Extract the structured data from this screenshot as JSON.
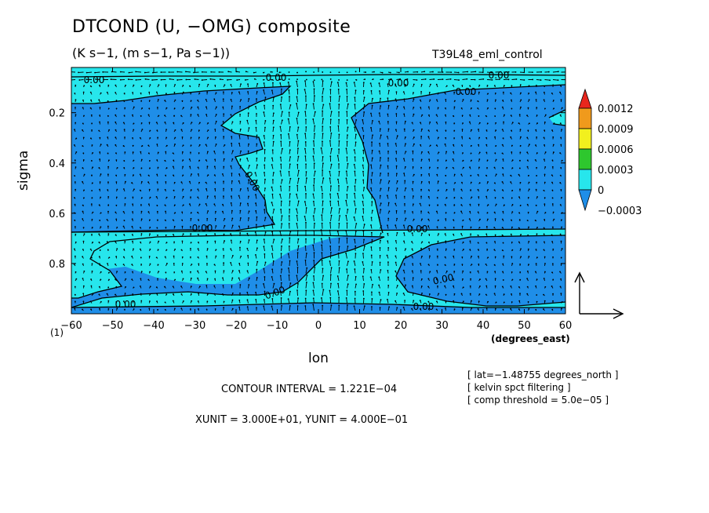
{
  "header": {
    "title": "DTCOND (U, −OMG) composite",
    "subtitle": "(K s−1, (m s−1, Pa s−1))",
    "run": "T39L48_eml_control"
  },
  "footer": {
    "contour_interval": "CONTOUR INTERVAL = 1.221E−04",
    "units": "XUNIT = 3.000E+01, YUNIT = 4.000E−01",
    "info": [
      "[ lat=−1.48755 degrees_north ]",
      "[ kelvin spct filtering ]",
      "[ comp threshold = 5.0e−05 ]"
    ]
  },
  "chart_data": {
    "type": "heatmap",
    "title": "DTCOND (U, −OMG) composite",
    "subtitle": "(K s−1, (m s−1, Pa s−1))",
    "xlabel": "lon",
    "x_unit_label": "(degrees_east)",
    "ylabel": "sigma",
    "y_corner_label": "(1)",
    "xlim": [
      -60,
      60
    ],
    "ylim": [
      1.0,
      0.02
    ],
    "x_ticks": [
      -60,
      -50,
      -40,
      -30,
      -20,
      -10,
      0,
      10,
      20,
      30,
      40,
      50,
      60
    ],
    "x_tick_labels": [
      "−60",
      "−50",
      "−40",
      "−30",
      "−20",
      "−10",
      "0",
      "10",
      "20",
      "30",
      "40",
      "50",
      "60"
    ],
    "y_ticks": [
      0.2,
      0.4,
      0.6,
      0.8
    ],
    "y_tick_labels": [
      "0.2",
      "0.4",
      "0.6",
      "0.8"
    ],
    "colorbar": {
      "levels": [
        "0.0012",
        "0.0009",
        "0.0006",
        "0.0003",
        "0",
        "−0.0003"
      ],
      "colors": [
        "#e8261d",
        "#f09a1c",
        "#f2f01e",
        "#2ec72e",
        "#27e6ec",
        "#1f8ee8"
      ]
    },
    "contour_labels": [
      "0.00",
      "0.00",
      "0.00",
      "0.00",
      "0.00",
      "0.00",
      "0.00",
      "0.00",
      "0.00",
      "0.00",
      "0.00",
      "0.00"
    ],
    "positive_region_color": "#27e6ec",
    "negative_region_color": "#1f8ee8",
    "vector_reference": {
      "xunit": 30.0,
      "yunit": 0.4
    }
  }
}
